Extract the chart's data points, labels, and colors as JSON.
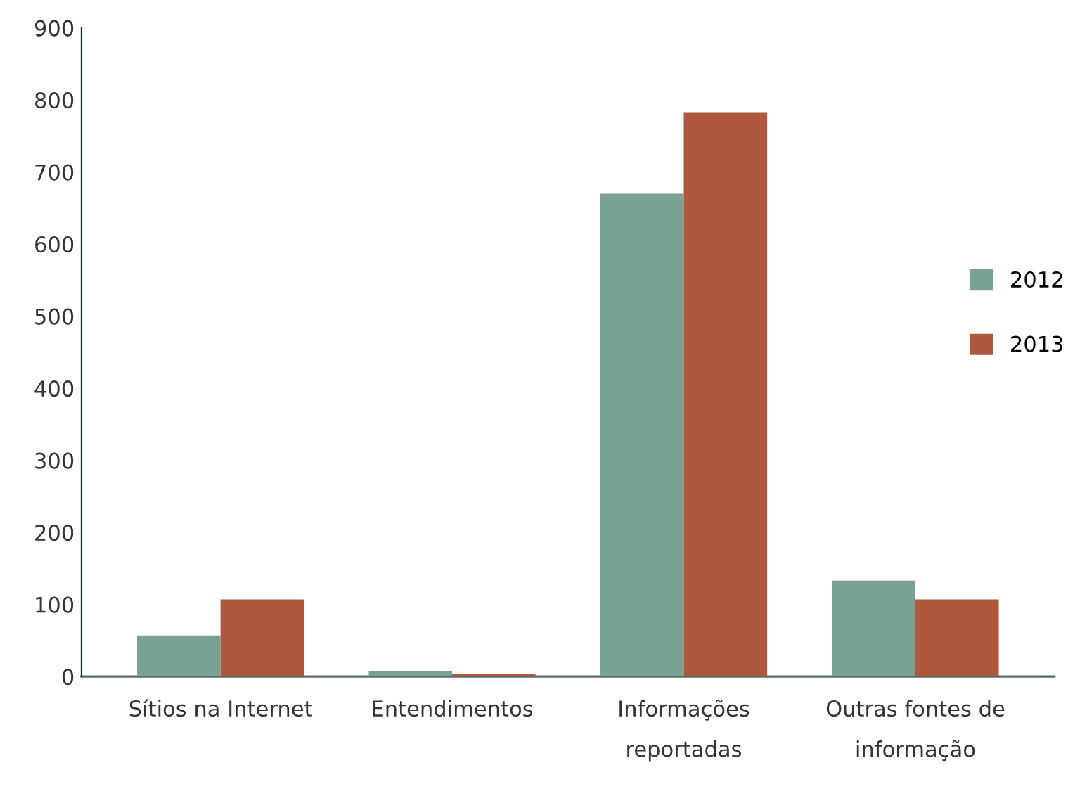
{
  "chart_data": {
    "type": "bar",
    "categories": [
      "Sítios na Internet",
      "Entendimentos",
      "Informações\nreportadas",
      "Outras fontes de\ninformação"
    ],
    "series": [
      {
        "name": "2012",
        "color": "#79a293",
        "values": [
          57,
          8,
          670,
          133
        ]
      },
      {
        "name": "2013",
        "color": "#b0583b",
        "values": [
          107,
          3,
          783,
          107
        ]
      }
    ],
    "ylim": [
      0,
      900
    ],
    "yticks": [
      0,
      100,
      200,
      300,
      400,
      500,
      600,
      700,
      800,
      900
    ],
    "grid": false,
    "legend": "right"
  }
}
